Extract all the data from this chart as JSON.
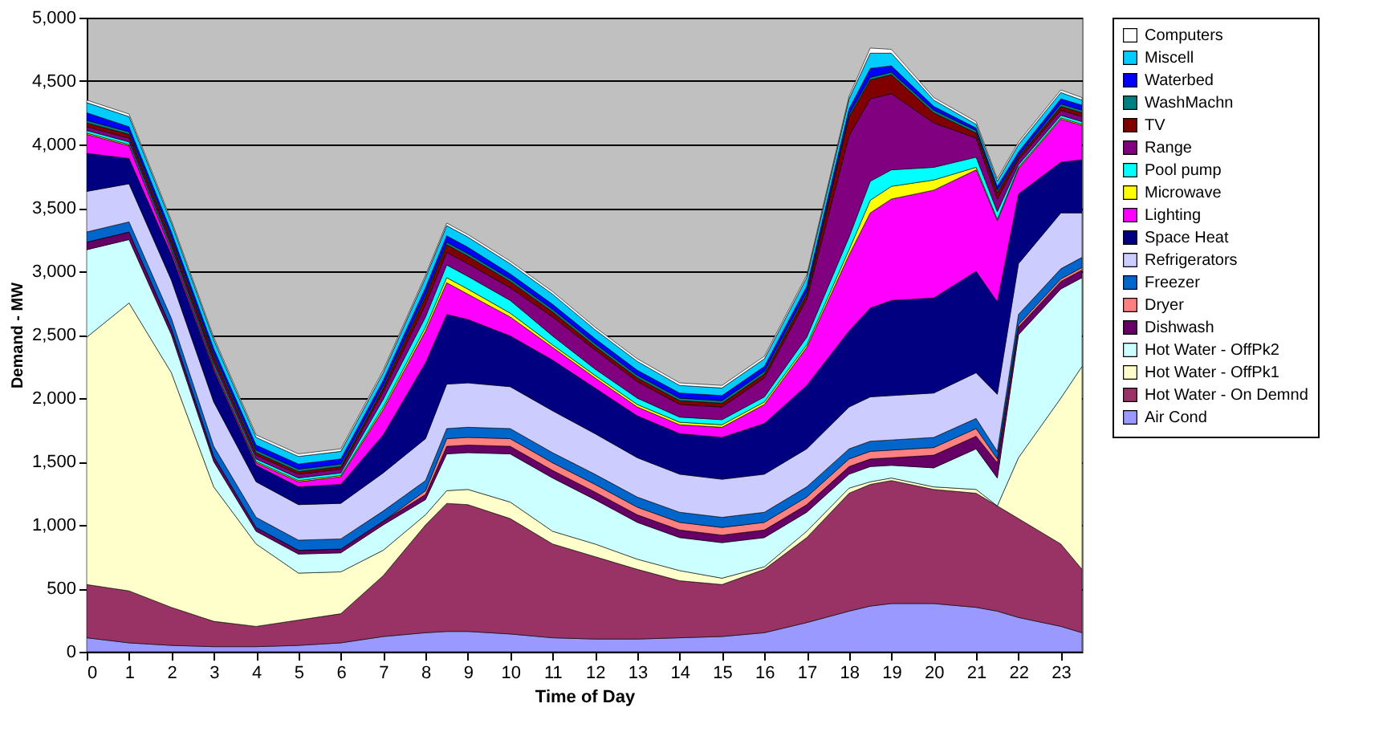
{
  "chart_data": {
    "type": "area",
    "stacked": true,
    "xlabel": "Time of Day",
    "ylabel": "Demand - MW",
    "x": [
      0,
      1,
      2,
      3,
      4,
      5,
      6,
      7,
      8,
      8.5,
      9,
      10,
      11,
      12,
      13,
      14,
      15,
      16,
      17,
      18,
      18.5,
      19,
      20,
      21,
      21.5,
      22,
      23,
      23.5
    ],
    "xlim": [
      0,
      23.5
    ],
    "xticks": [
      0,
      1,
      2,
      3,
      4,
      5,
      6,
      7,
      8,
      9,
      10,
      11,
      12,
      13,
      14,
      15,
      16,
      17,
      18,
      19,
      20,
      21,
      22,
      23
    ],
    "ylim": [
      0,
      5000
    ],
    "yticks": [
      {
        "value": 0,
        "label": "0"
      },
      {
        "value": 500,
        "label": "500"
      },
      {
        "value": 1000,
        "label": "1,000"
      },
      {
        "value": 1500,
        "label": "1,500"
      },
      {
        "value": 2000,
        "label": "2,000"
      },
      {
        "value": 2500,
        "label": "2,500"
      },
      {
        "value": 3000,
        "label": "3,000"
      },
      {
        "value": 3500,
        "label": "3,500"
      },
      {
        "value": 4000,
        "label": "4,000"
      },
      {
        "value": 4500,
        "label": "4,500"
      },
      {
        "value": 5000,
        "label": "5,000"
      }
    ],
    "grid": "y",
    "legend": "right",
    "series": [
      {
        "name": "Air Cond",
        "color": "#9999ff",
        "values": [
          110,
          70,
          50,
          40,
          40,
          50,
          70,
          120,
          150,
          160,
          160,
          140,
          110,
          100,
          100,
          110,
          120,
          150,
          230,
          320,
          360,
          380,
          380,
          350,
          320,
          270,
          200,
          150
        ]
      },
      {
        "name": "Hot Water - On Demnd",
        "color": "#993366",
        "values": [
          420,
          410,
          300,
          200,
          160,
          200,
          230,
          480,
          850,
          1010,
          1000,
          910,
          740,
          650,
          550,
          450,
          410,
          500,
          670,
          930,
          960,
          970,
          900,
          900,
          830,
          780,
          650,
          500
        ]
      },
      {
        "name": "Hot Water - OffPk1",
        "color": "#ffffcc",
        "values": [
          1950,
          2270,
          1850,
          1060,
          650,
          370,
          330,
          200,
          80,
          100,
          120,
          130,
          100,
          100,
          80,
          80,
          50,
          20,
          50,
          40,
          20,
          20,
          20,
          30,
          0,
          480,
          1150,
          1600
        ]
      },
      {
        "name": "Hot Water - OffPk2",
        "color": "#ccffff",
        "values": [
          690,
          500,
          300,
          200,
          100,
          150,
          150,
          200,
          120,
          290,
          290,
          380,
          420,
          350,
          290,
          260,
          280,
          230,
          150,
          110,
          120,
          100,
          150,
          320,
          220,
          970,
          860,
          700
        ]
      },
      {
        "name": "Dishwash",
        "color": "#660066",
        "values": [
          60,
          60,
          50,
          40,
          30,
          30,
          30,
          30,
          40,
          60,
          60,
          60,
          60,
          60,
          60,
          60,
          60,
          60,
          60,
          60,
          60,
          60,
          100,
          100,
          120,
          60,
          60,
          60
        ]
      },
      {
        "name": "Dryer",
        "color": "#ff8080",
        "values": [
          0,
          0,
          0,
          0,
          0,
          0,
          0,
          0,
          30,
          60,
          60,
          60,
          60,
          60,
          60,
          60,
          60,
          60,
          60,
          60,
          60,
          60,
          60,
          60,
          30,
          20,
          20,
          20
        ]
      },
      {
        "name": "Freezer",
        "color": "#0066cc",
        "values": [
          80,
          80,
          80,
          80,
          80,
          80,
          80,
          80,
          80,
          80,
          80,
          80,
          80,
          80,
          80,
          80,
          80,
          80,
          80,
          80,
          80,
          80,
          80,
          80,
          60,
          80,
          80,
          80
        ]
      },
      {
        "name": "Refrigerators",
        "color": "#ccccff",
        "values": [
          320,
          300,
          300,
          350,
          280,
          280,
          280,
          300,
          330,
          350,
          350,
          330,
          330,
          320,
          310,
          300,
          300,
          300,
          300,
          330,
          350,
          350,
          350,
          360,
          450,
          400,
          440,
          350
        ]
      },
      {
        "name": "Space Heat",
        "color": "#000080",
        "values": [
          300,
          200,
          200,
          250,
          130,
          140,
          150,
          300,
          600,
          550,
          500,
          400,
          400,
          360,
          330,
          320,
          330,
          400,
          500,
          600,
          700,
          750,
          750,
          800,
          730,
          550,
          400,
          420
        ]
      },
      {
        "name": "Lighting",
        "color": "#ff00ff",
        "values": [
          150,
          100,
          30,
          20,
          20,
          40,
          60,
          200,
          250,
          250,
          200,
          150,
          100,
          80,
          70,
          70,
          80,
          150,
          300,
          600,
          750,
          800,
          850,
          800,
          640,
          200,
          340,
          270
        ]
      },
      {
        "name": "Microwave",
        "color": "#ffff00",
        "values": [
          10,
          10,
          10,
          10,
          10,
          10,
          10,
          20,
          30,
          40,
          40,
          30,
          20,
          20,
          20,
          20,
          20,
          20,
          20,
          40,
          100,
          100,
          80,
          20,
          10,
          10,
          10,
          10
        ]
      },
      {
        "name": "Pool pump",
        "color": "#00ffff",
        "values": [
          20,
          20,
          20,
          20,
          20,
          20,
          20,
          60,
          80,
          100,
          100,
          100,
          70,
          50,
          50,
          40,
          40,
          40,
          60,
          100,
          150,
          130,
          100,
          80,
          60,
          20,
          20,
          20
        ]
      },
      {
        "name": "Range",
        "color": "#800080",
        "values": [
          30,
          30,
          30,
          30,
          30,
          30,
          30,
          60,
          100,
          100,
          100,
          100,
          150,
          150,
          130,
          100,
          100,
          150,
          300,
          800,
          650,
          600,
          350,
          150,
          100,
          40,
          40,
          40
        ]
      },
      {
        "name": "TV",
        "color": "#800000",
        "values": [
          30,
          30,
          30,
          30,
          20,
          20,
          20,
          30,
          60,
          60,
          60,
          50,
          40,
          30,
          30,
          30,
          30,
          30,
          40,
          150,
          150,
          150,
          80,
          40,
          50,
          20,
          30,
          30
        ]
      },
      {
        "name": "WashMachn",
        "color": "#008080",
        "values": [
          20,
          20,
          20,
          20,
          20,
          20,
          20,
          20,
          20,
          20,
          20,
          20,
          20,
          20,
          20,
          20,
          20,
          20,
          20,
          20,
          20,
          20,
          20,
          20,
          20,
          10,
          20,
          20
        ]
      },
      {
        "name": "Waterbed",
        "color": "#0000ff",
        "values": [
          60,
          40,
          40,
          40,
          40,
          40,
          40,
          40,
          50,
          50,
          50,
          40,
          40,
          40,
          40,
          40,
          40,
          40,
          40,
          40,
          70,
          50,
          30,
          20,
          30,
          30,
          40,
          40
        ]
      },
      {
        "name": "Miscell",
        "color": "#00ccff",
        "values": [
          80,
          80,
          70,
          70,
          60,
          60,
          60,
          60,
          80,
          80,
          80,
          80,
          80,
          70,
          70,
          60,
          60,
          60,
          70,
          80,
          120,
          100,
          50,
          30,
          40,
          60,
          50,
          40
        ]
      },
      {
        "name": "Computers",
        "color": "#ffffff",
        "values": [
          20,
          20,
          20,
          20,
          20,
          20,
          20,
          20,
          20,
          20,
          20,
          20,
          20,
          20,
          20,
          20,
          20,
          20,
          20,
          20,
          40,
          30,
          20,
          20,
          20,
          20,
          20,
          20
        ]
      }
    ]
  }
}
